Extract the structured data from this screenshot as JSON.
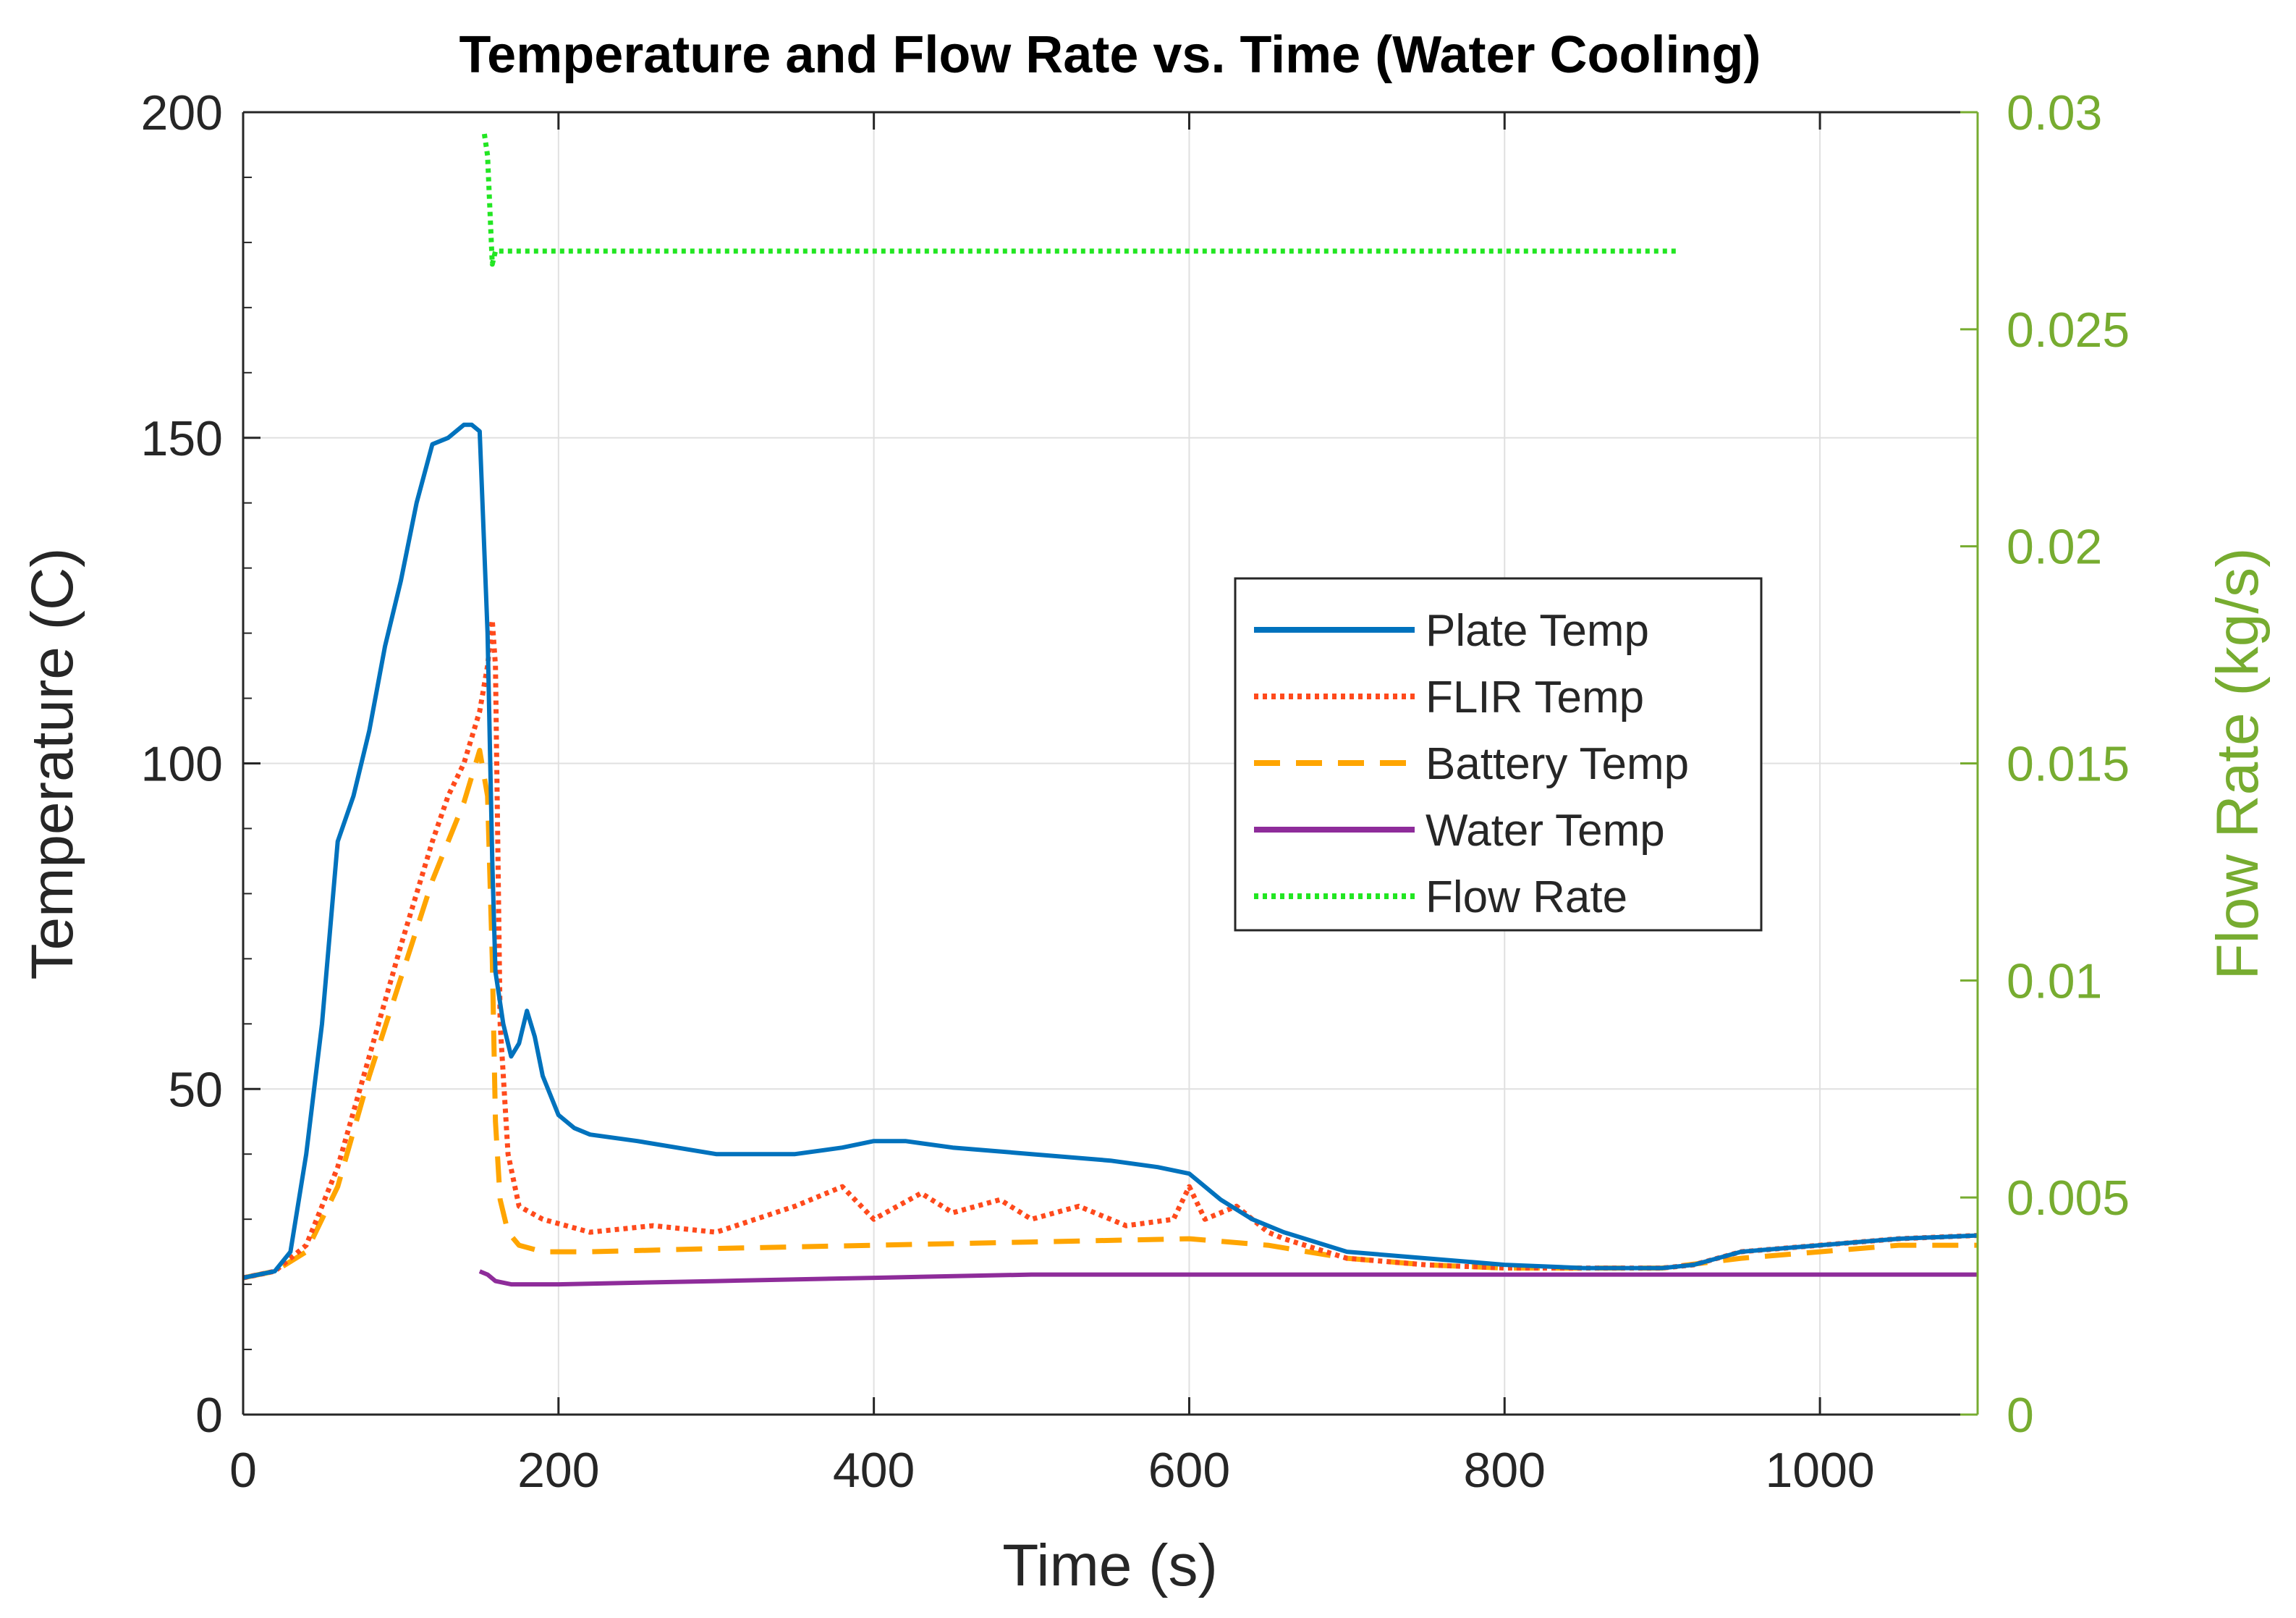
{
  "chart_data": {
    "type": "line",
    "title": "Temperature and Flow Rate vs. Time (Water Cooling)",
    "xlabel": "Time (s)",
    "ylabel_left": "Temperature (C)",
    "ylabel_right": "Flow Rate (kg/s)",
    "xlim": [
      0,
      1100
    ],
    "ylim_left": [
      0,
      200
    ],
    "ylim_right": [
      0,
      0.03
    ],
    "x_ticks": [
      0,
      200,
      400,
      600,
      800,
      1000
    ],
    "x_tick_labels": [
      "0",
      "200",
      "400",
      "600",
      "800",
      "1000"
    ],
    "y_left_ticks": [
      0,
      50,
      100,
      150,
      200
    ],
    "y_left_tick_labels": [
      "0",
      "50",
      "100",
      "150",
      "200"
    ],
    "y_right_ticks": [
      0,
      0.005,
      0.01,
      0.015,
      0.02,
      0.025,
      0.03
    ],
    "y_right_tick_labels": [
      "0",
      "0.005",
      "0.01",
      "0.015",
      "0.02",
      "0.025",
      "0.03"
    ],
    "grid": true,
    "legend_position": "center-right",
    "colors": {
      "plate": "#0072BD",
      "flir": "#FF4A1C",
      "battery": "#FFA500",
      "water": "#8E2C9A",
      "flow": "#22E622",
      "right_axis": "#77AC30",
      "axis": "#262626",
      "grid": "#e0e0e0"
    },
    "series": [
      {
        "name": "Plate Temp",
        "axis": "left",
        "style": "solid",
        "color": "#0072BD",
        "x": [
          0,
          20,
          30,
          40,
          50,
          60,
          70,
          80,
          90,
          100,
          110,
          120,
          130,
          140,
          145,
          150,
          155,
          158,
          160,
          165,
          170,
          175,
          180,
          185,
          190,
          200,
          210,
          220,
          250,
          300,
          350,
          380,
          400,
          420,
          450,
          500,
          550,
          580,
          600,
          620,
          640,
          660,
          700,
          750,
          800,
          850,
          900,
          920,
          950,
          1000,
          1050,
          1100
        ],
        "values": [
          21,
          22,
          25,
          40,
          60,
          88,
          95,
          105,
          118,
          128,
          140,
          149,
          150,
          152,
          152,
          151,
          120,
          85,
          68,
          60,
          55,
          57,
          62,
          58,
          52,
          46,
          44,
          43,
          42,
          40,
          40,
          41,
          42,
          42,
          41,
          40,
          39,
          38,
          37,
          33,
          30,
          28,
          25,
          24,
          23,
          22.5,
          22.5,
          23,
          25,
          26,
          27,
          27.5
        ]
      },
      {
        "name": "FLIR Temp",
        "axis": "left",
        "style": "dotted",
        "color": "#FF4A1C",
        "x": [
          0,
          20,
          40,
          60,
          80,
          100,
          120,
          130,
          140,
          150,
          155,
          158,
          160,
          163,
          168,
          175,
          190,
          220,
          260,
          300,
          350,
          380,
          400,
          430,
          450,
          480,
          500,
          530,
          560,
          590,
          600,
          610,
          630,
          650,
          660,
          700,
          750,
          800,
          850,
          900,
          920,
          950,
          1000,
          1050,
          1100
        ],
        "values": [
          21,
          22,
          26,
          38,
          55,
          72,
          88,
          95,
          100,
          108,
          115,
          122,
          115,
          60,
          40,
          32,
          30,
          28,
          29,
          28,
          32,
          35,
          30,
          34,
          31,
          33,
          30,
          32,
          29,
          30,
          35,
          30,
          32,
          28,
          27,
          24,
          23,
          22.5,
          22.5,
          22.5,
          23,
          25,
          26,
          27,
          27.5
        ]
      },
      {
        "name": "Battery Temp",
        "axis": "left",
        "style": "dashed",
        "color": "#FFA500",
        "x": [
          0,
          20,
          40,
          60,
          80,
          100,
          120,
          130,
          140,
          150,
          155,
          158,
          160,
          163,
          168,
          175,
          190,
          220,
          300,
          400,
          500,
          600,
          650,
          700,
          750,
          800,
          850,
          900,
          950,
          1000,
          1050,
          1100
        ],
        "values": [
          21,
          22,
          25,
          35,
          52,
          67,
          82,
          88,
          94,
          102,
          95,
          70,
          45,
          33,
          28,
          26,
          25,
          25,
          25.5,
          26,
          26.5,
          27,
          26,
          24,
          23,
          22.5,
          22.5,
          22.5,
          24,
          25,
          26,
          26
        ]
      },
      {
        "name": "Water Temp",
        "axis": "left",
        "style": "solid",
        "color": "#8E2C9A",
        "x": [
          150,
          155,
          160,
          170,
          200,
          300,
          400,
          500,
          600,
          700,
          800,
          900,
          1000,
          1100
        ],
        "values": [
          22,
          21.5,
          20.5,
          20,
          20,
          20.5,
          21,
          21.5,
          21.5,
          21.5,
          21.5,
          21.5,
          21.5,
          21.5
        ]
      },
      {
        "name": "Flow Rate",
        "axis": "right",
        "style": "dotted",
        "color": "#22E622",
        "x": [
          153,
          155,
          158,
          160,
          200,
          300,
          400,
          500,
          600,
          700,
          800,
          850,
          900,
          910
        ],
        "values": [
          0.0295,
          0.029,
          0.0265,
          0.0268,
          0.0268,
          0.0268,
          0.0268,
          0.0268,
          0.0268,
          0.0268,
          0.0268,
          0.0268,
          0.0268,
          0.0268
        ]
      }
    ]
  }
}
